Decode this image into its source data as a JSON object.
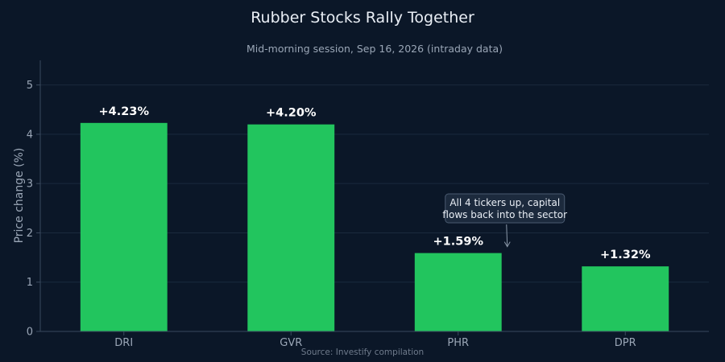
{
  "chart_data": {
    "type": "bar",
    "title": "Rubber Stocks Rally Together",
    "subtitle": "Mid-morning session, Sep 16, 2026 (intraday data)",
    "xlabel": "",
    "ylabel": "Price change (%)",
    "categories": [
      "DRI",
      "GVR",
      "PHR",
      "DPR"
    ],
    "values": [
      4.23,
      4.2,
      1.59,
      1.32
    ],
    "data_labels": [
      "+4.23%",
      "+4.20%",
      "+1.59%",
      "+1.32%"
    ],
    "ylim": [
      0,
      5.5
    ],
    "yticks": [
      "0",
      "1",
      "2",
      "3",
      "4",
      "5"
    ],
    "grid": true,
    "annotation": {
      "lines": [
        "All 4 tickers up, capital",
        "flows back into the sector"
      ],
      "target_category": "PHR"
    },
    "source": "Source: Investify compilation",
    "colors": {
      "bar": "#22c55e",
      "background": "#0b1728",
      "grid": "#1b2a3d",
      "axis": "#3a4a5e"
    }
  }
}
